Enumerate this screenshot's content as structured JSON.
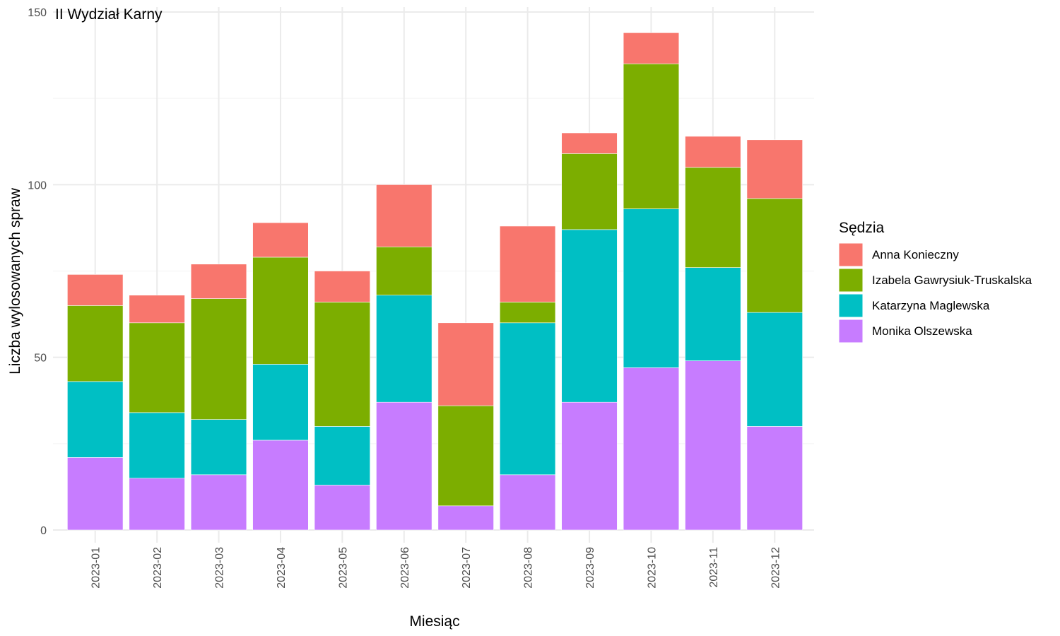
{
  "chart_data": {
    "type": "bar",
    "stacked": true,
    "title": "II Wydział Karny",
    "xlabel": "Miesiąc",
    "ylabel": "Liczba wylosowanych spraw",
    "ylim": [
      0,
      150
    ],
    "yticks": [
      0,
      50,
      100,
      150
    ],
    "grid": true,
    "legend_position": "right",
    "legend_title": "Sędzia",
    "categories": [
      "2023-01",
      "2023-02",
      "2023-03",
      "2023-04",
      "2023-05",
      "2023-06",
      "2023-07",
      "2023-08",
      "2023-09",
      "2023-10",
      "2023-11",
      "2023-12"
    ],
    "series": [
      {
        "name": "Monika Olszewska",
        "color": "#C77CFF",
        "values": [
          21,
          15,
          16,
          26,
          13,
          37,
          7,
          16,
          37,
          47,
          49,
          30
        ]
      },
      {
        "name": "Katarzyna Maglewska",
        "color": "#00BFC4",
        "values": [
          22,
          19,
          16,
          22,
          17,
          31,
          0,
          44,
          50,
          46,
          27,
          33
        ]
      },
      {
        "name": "Izabela Gawrysiuk-Truskalska",
        "color": "#7CAE00",
        "values": [
          22,
          26,
          35,
          31,
          36,
          14,
          29,
          6,
          22,
          42,
          29,
          33
        ]
      },
      {
        "name": "Anna Konieczny",
        "color": "#F8766D",
        "values": [
          9,
          8,
          10,
          10,
          9,
          18,
          24,
          22,
          6,
          9,
          9,
          17
        ]
      }
    ],
    "legend_order": [
      "Anna Konieczny",
      "Izabela Gawrysiuk-Truskalska",
      "Katarzyna Maglewska",
      "Monika Olszewska"
    ]
  }
}
